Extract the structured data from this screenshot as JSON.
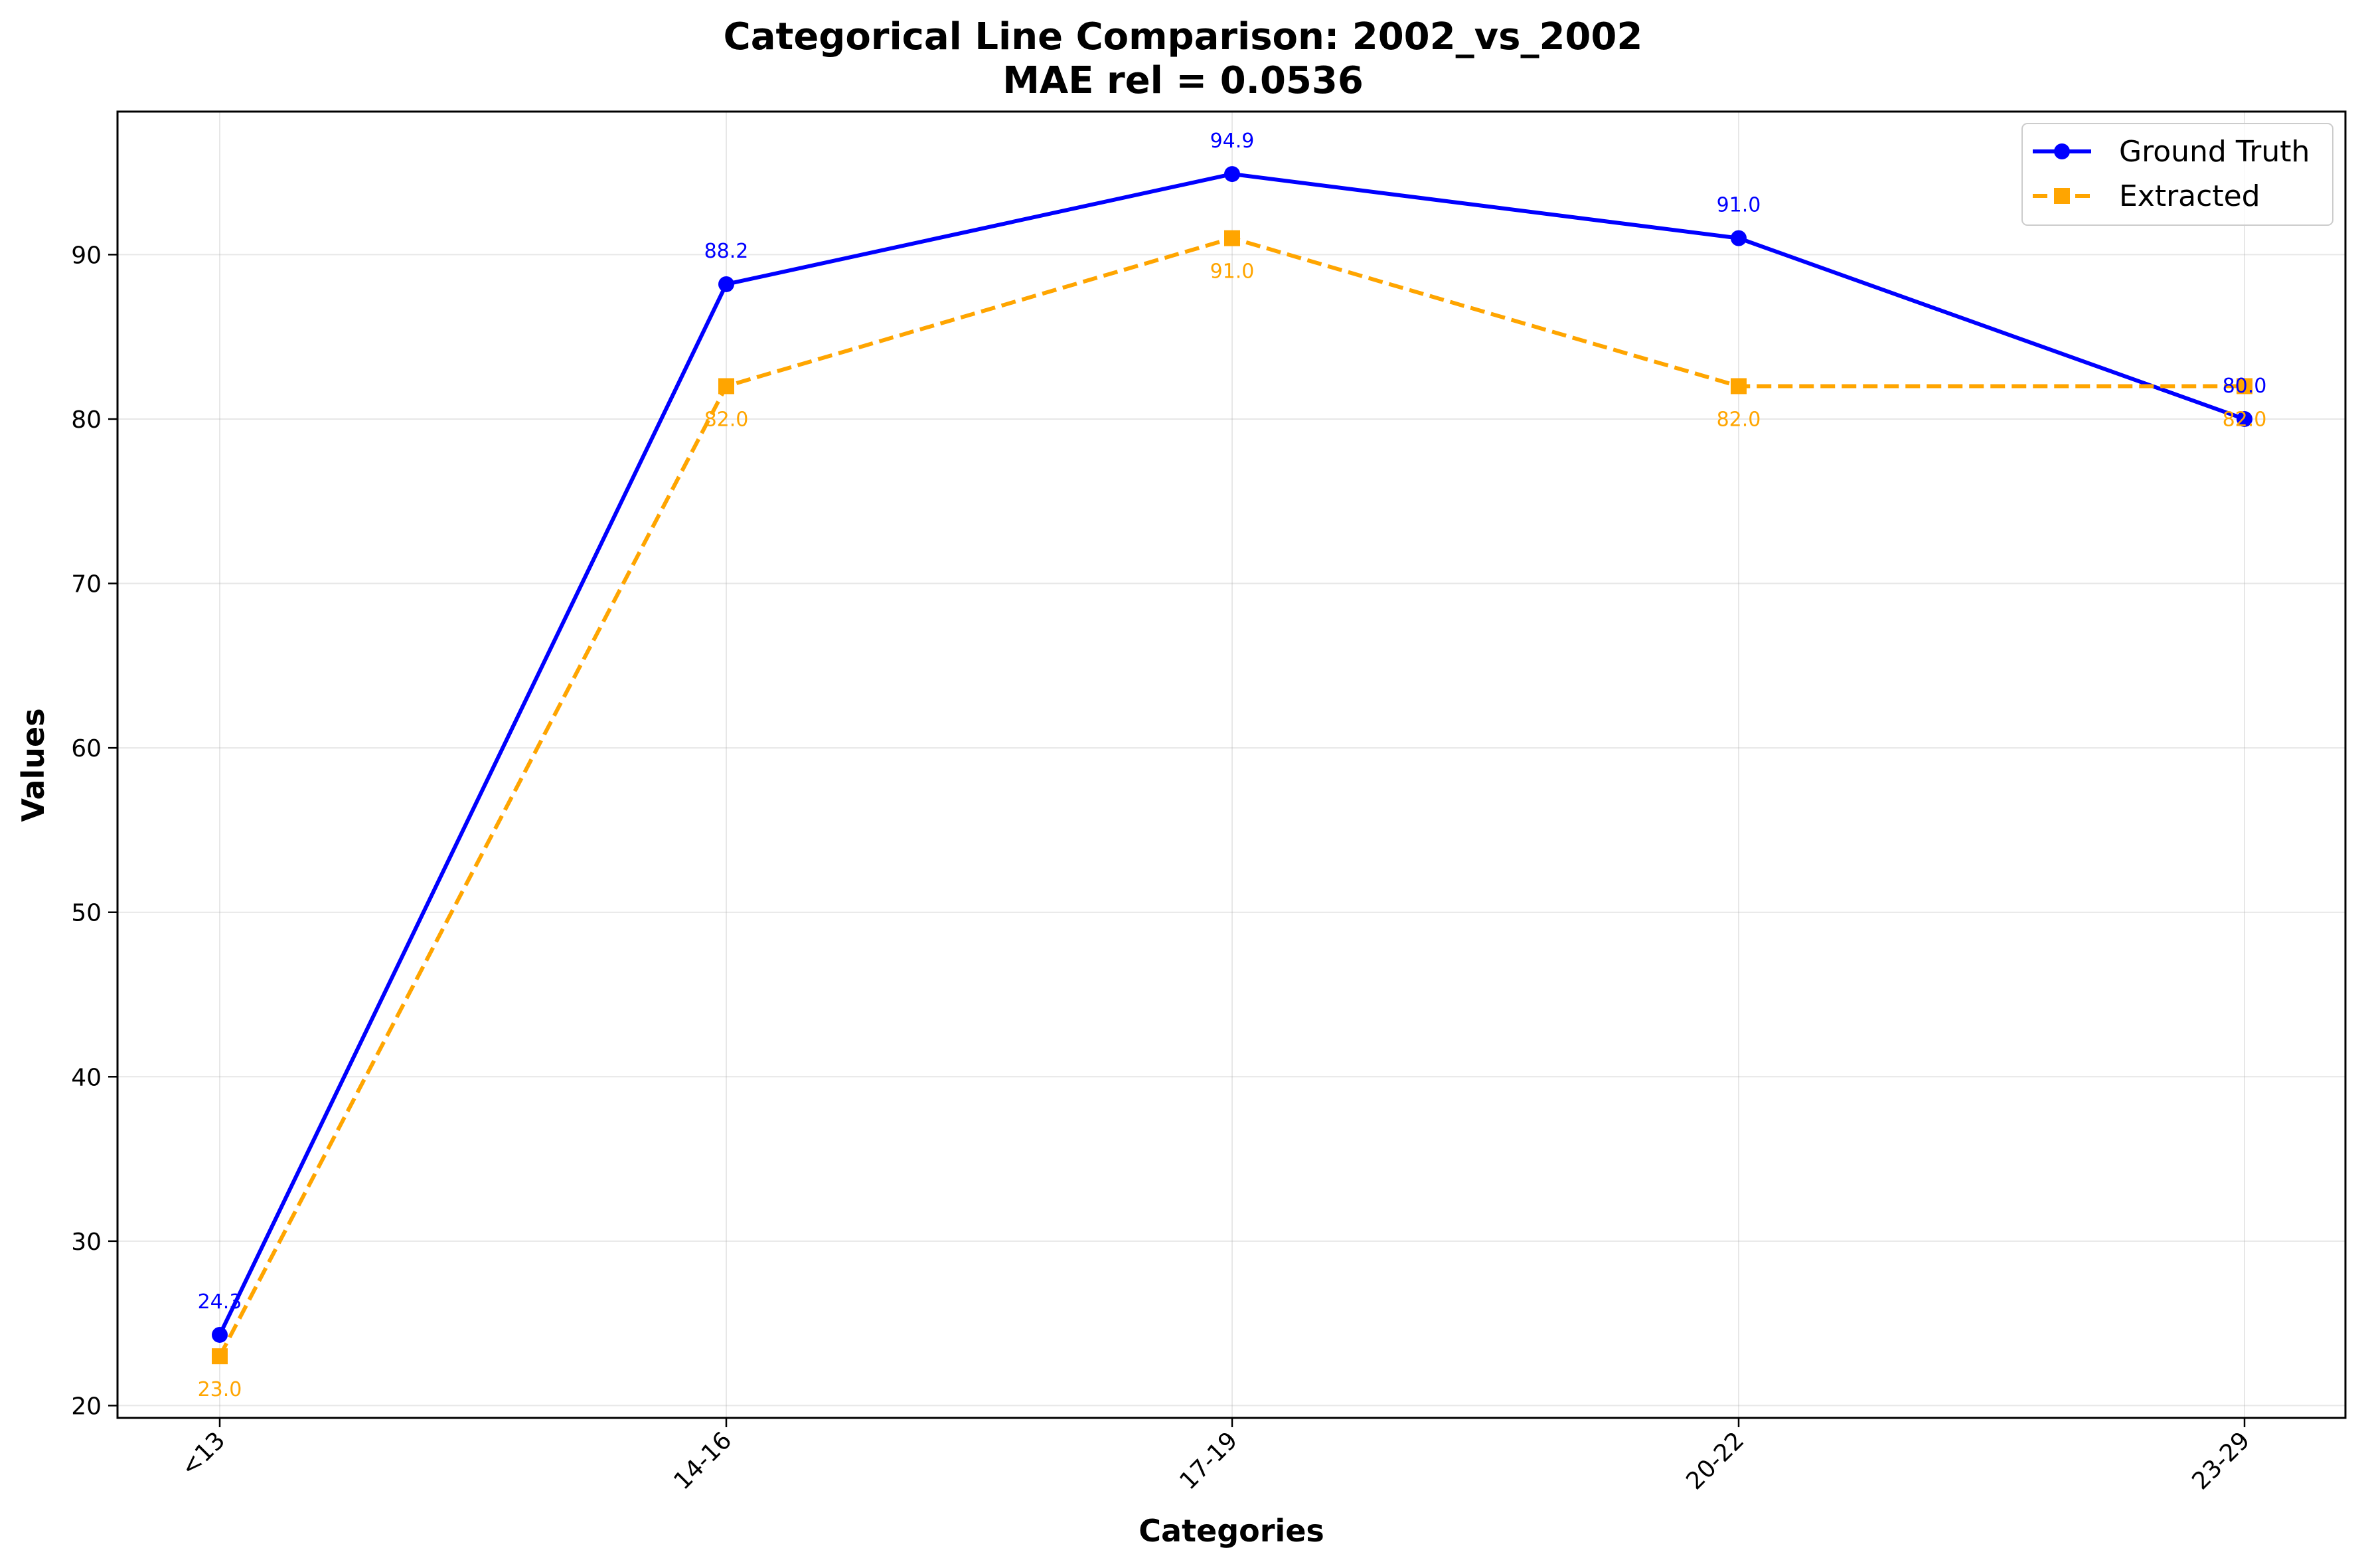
{
  "chart_data": {
    "type": "line",
    "title": "Categorical Line Comparison: 2002_vs_2002",
    "subtitle": "MAE rel = 0.0536",
    "xlabel": "Categories",
    "ylabel": "Values",
    "categories": [
      "<13",
      "14-16",
      "17-19",
      "20-22",
      "23-29"
    ],
    "ylim": [
      19.25,
      98.7
    ],
    "yticks": [
      20,
      30,
      40,
      50,
      60,
      70,
      80,
      90
    ],
    "grid": true,
    "legend_position": "top-right",
    "series": [
      {
        "name": "Ground Truth",
        "values": [
          24.3,
          88.2,
          94.9,
          91.0,
          80.0
        ],
        "labels": [
          "24.3",
          "88.2",
          "94.9",
          "91.0",
          "80.0"
        ],
        "color": "#0000ff",
        "line_style": "solid",
        "marker": "circle",
        "label_position": "above"
      },
      {
        "name": "Extracted",
        "values": [
          23.0,
          82.0,
          91.0,
          82.0,
          82.0
        ],
        "labels": [
          "23.0",
          "82.0",
          "91.0",
          "82.0",
          "82.0"
        ],
        "color": "#ffa500",
        "line_style": "dashed",
        "marker": "square",
        "label_position": "below"
      }
    ]
  }
}
